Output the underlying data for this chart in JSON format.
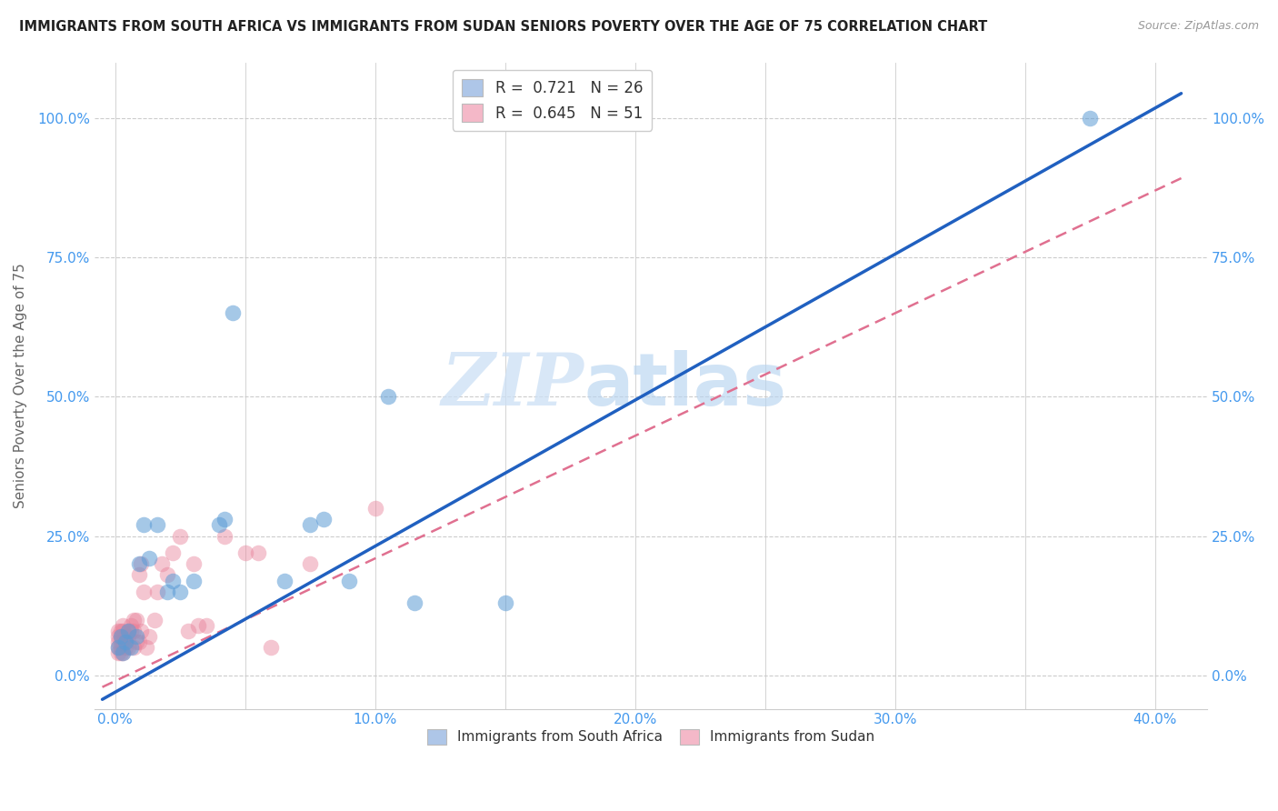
{
  "title": "IMMIGRANTS FROM SOUTH AFRICA VS IMMIGRANTS FROM SUDAN SENIORS POVERTY OVER THE AGE OF 75 CORRELATION CHART",
  "source": "Source: ZipAtlas.com",
  "xlabel_ticks": [
    "0.0%",
    "",
    "10.0%",
    "",
    "20.0%",
    "",
    "30.0%",
    "",
    "40.0%"
  ],
  "xlabel_tick_vals": [
    0.0,
    0.05,
    0.1,
    0.15,
    0.2,
    0.25,
    0.3,
    0.35,
    0.4
  ],
  "ylabel_ticks": [
    "0.0%",
    "25.0%",
    "50.0%",
    "75.0%",
    "100.0%"
  ],
  "ylabel_tick_vals": [
    0.0,
    0.25,
    0.5,
    0.75,
    1.0
  ],
  "xlim": [
    -0.008,
    0.42
  ],
  "ylim": [
    -0.06,
    1.1
  ],
  "legend1_label": "R =  0.721   N = 26",
  "legend2_label": "R =  0.645   N = 51",
  "legend1_color": "#aec6e8",
  "legend2_color": "#f4b8c8",
  "series1_color": "#5b9bd5",
  "series2_color": "#e8829a",
  "series1_line_color": "#2060c0",
  "series2_line_color": "#e07090",
  "watermark_zip": "ZIP",
  "watermark_atlas": "atlas",
  "ylabel": "Seniors Poverty Over the Age of 75",
  "sa_line_slope": 2.62,
  "sa_line_intercept": -0.03,
  "su_line_slope": 2.2,
  "su_line_intercept": -0.01,
  "south_africa_x": [
    0.001,
    0.002,
    0.003,
    0.004,
    0.005,
    0.006,
    0.008,
    0.009,
    0.011,
    0.013,
    0.016,
    0.02,
    0.022,
    0.025,
    0.03,
    0.04,
    0.042,
    0.045,
    0.065,
    0.075,
    0.08,
    0.09,
    0.105,
    0.115,
    0.15,
    0.375
  ],
  "south_africa_y": [
    0.05,
    0.07,
    0.04,
    0.06,
    0.08,
    0.05,
    0.07,
    0.2,
    0.27,
    0.21,
    0.27,
    0.15,
    0.17,
    0.15,
    0.17,
    0.27,
    0.28,
    0.65,
    0.17,
    0.27,
    0.28,
    0.17,
    0.5,
    0.13,
    0.13,
    1.0
  ],
  "sudan_x": [
    0.001,
    0.001,
    0.001,
    0.001,
    0.001,
    0.002,
    0.002,
    0.002,
    0.002,
    0.002,
    0.003,
    0.003,
    0.003,
    0.003,
    0.003,
    0.004,
    0.004,
    0.004,
    0.005,
    0.005,
    0.005,
    0.006,
    0.006,
    0.007,
    0.007,
    0.007,
    0.008,
    0.008,
    0.009,
    0.009,
    0.01,
    0.01,
    0.011,
    0.012,
    0.013,
    0.015,
    0.016,
    0.018,
    0.02,
    0.022,
    0.025,
    0.028,
    0.03,
    0.032,
    0.035,
    0.042,
    0.05,
    0.055,
    0.06,
    0.075,
    0.1
  ],
  "sudan_y": [
    0.04,
    0.05,
    0.06,
    0.07,
    0.08,
    0.04,
    0.06,
    0.05,
    0.07,
    0.08,
    0.04,
    0.06,
    0.07,
    0.08,
    0.09,
    0.05,
    0.06,
    0.07,
    0.05,
    0.07,
    0.08,
    0.08,
    0.09,
    0.1,
    0.05,
    0.08,
    0.1,
    0.06,
    0.18,
    0.06,
    0.2,
    0.08,
    0.15,
    0.05,
    0.07,
    0.1,
    0.15,
    0.2,
    0.18,
    0.22,
    0.25,
    0.08,
    0.2,
    0.09,
    0.09,
    0.25,
    0.22,
    0.22,
    0.05,
    0.2,
    0.3
  ]
}
